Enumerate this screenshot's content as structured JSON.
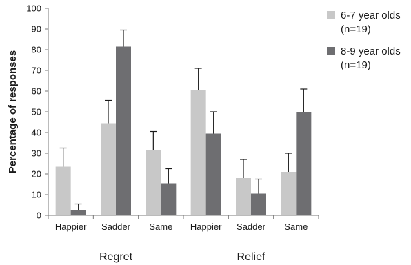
{
  "chart_data": {
    "type": "bar",
    "ylabel": "Percentage of responses",
    "xlabel": "",
    "ylim": [
      0,
      100
    ],
    "yticks": [
      0,
      10,
      20,
      30,
      40,
      50,
      60,
      70,
      80,
      90,
      100
    ],
    "grid": false,
    "legend_position": "top-right",
    "categories": [
      "Happier",
      "Sadder",
      "Same",
      "Happier",
      "Sadder",
      "Same"
    ],
    "groups": [
      {
        "label": "Regret",
        "categories": [
          0,
          1,
          2
        ]
      },
      {
        "label": "Relief",
        "categories": [
          3,
          4,
          5
        ]
      }
    ],
    "series": [
      {
        "name": "6-7 year olds (n=19)",
        "name_lines": [
          "6-7 year olds",
          "(n=19)"
        ],
        "color": "#c8c8c8",
        "values": [
          23.5,
          44.5,
          31.5,
          60.5,
          18,
          21
        ],
        "errors": [
          9,
          11,
          9,
          10.5,
          9,
          9
        ]
      },
      {
        "name": "8-9 year olds (n=19)",
        "name_lines": [
          "8-9 year olds",
          "(n=19)"
        ],
        "color": "#6e6e71",
        "values": [
          2.5,
          81.5,
          15.5,
          39.5,
          10.5,
          50
        ],
        "errors": [
          3,
          8,
          7,
          10.5,
          7,
          11
        ]
      }
    ]
  }
}
